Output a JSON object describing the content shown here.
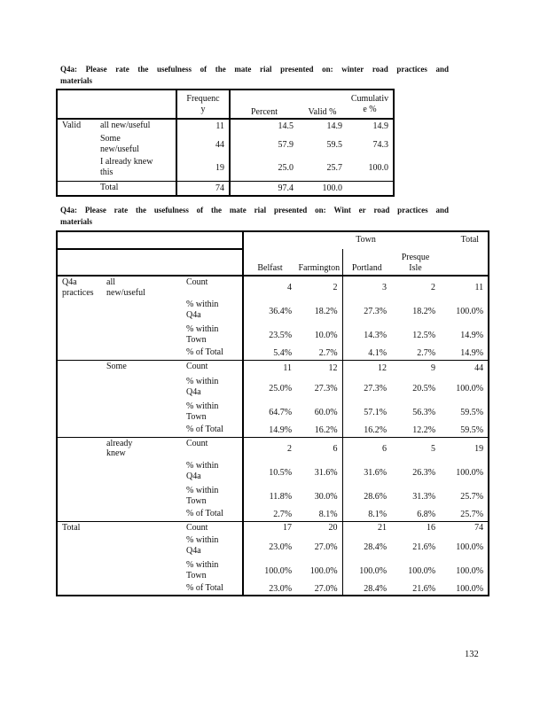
{
  "page": {
    "number": "132"
  },
  "title1": {
    "words": [
      "Q4a:",
      "Please",
      "rate",
      "the",
      "usefulness",
      "of",
      "the",
      "mate",
      "rial",
      "presented",
      "on:",
      "winter",
      "road",
      "practices",
      "and"
    ],
    "line2": "materials"
  },
  "title2": {
    "words": [
      "Q4a:",
      "Please",
      "rate",
      "the",
      "usefulness",
      "of",
      "the",
      "mate",
      "rial",
      "presented",
      "on:",
      "Wint",
      "er",
      "road",
      "practices",
      "and"
    ],
    "line2": "materials"
  },
  "table1": {
    "group_label": "Valid",
    "header": {
      "frequency": "Frequenc\ny",
      "percent": "Percent",
      "valid_pct": "Valid %",
      "cumulative_pct": "Cumulativ\ne %"
    },
    "rows": [
      {
        "label": "all new/useful",
        "frequency": "11",
        "percent": "14.5",
        "valid_pct": "14.9",
        "cumulative_pct": "14.9"
      },
      {
        "label": "Some\nnew/useful",
        "frequency": "44",
        "percent": "57.9",
        "valid_pct": "59.5",
        "cumulative_pct": "74.3"
      },
      {
        "label": "I already knew\nthis",
        "frequency": "19",
        "percent": "25.0",
        "valid_pct": "25.7",
        "cumulative_pct": "100.0"
      },
      {
        "label": "Total",
        "frequency": "74",
        "percent": "97.4",
        "valid_pct": "100.0",
        "cumulative_pct": ""
      }
    ]
  },
  "table2": {
    "header": {
      "town": "Town",
      "total": "Total",
      "towns": [
        "Belfast",
        "Farmington",
        "Portland",
        "Presque\nIsle"
      ]
    },
    "blocks": [
      {
        "group": "Q4a\npractices",
        "category": "all\nnew/useful",
        "rows": [
          {
            "measure": "Count",
            "values": [
              "4",
              "2",
              "3",
              "2",
              "11"
            ]
          },
          {
            "measure": "% within\nQ4a",
            "values": [
              "36.4%",
              "18.2%",
              "27.3%",
              "18.2%",
              "100.0%"
            ]
          },
          {
            "measure": "% within\nTown",
            "values": [
              "23.5%",
              "10.0%",
              "14.3%",
              "12.5%",
              "14.9%"
            ]
          },
          {
            "measure": "% of Total",
            "values": [
              "5.4%",
              "2.7%",
              "4.1%",
              "2.7%",
              "14.9%"
            ]
          }
        ]
      },
      {
        "group": "",
        "category": "Some",
        "rows": [
          {
            "measure": "Count",
            "values": [
              "11",
              "12",
              "12",
              "9",
              "44"
            ]
          },
          {
            "measure": "% within\nQ4a",
            "values": [
              "25.0%",
              "27.3%",
              "27.3%",
              "20.5%",
              "100.0%"
            ]
          },
          {
            "measure": "% within\nTown",
            "values": [
              "64.7%",
              "60.0%",
              "57.1%",
              "56.3%",
              "59.5%"
            ]
          },
          {
            "measure": "% of Total",
            "values": [
              "14.9%",
              "16.2%",
              "16.2%",
              "12.2%",
              "59.5%"
            ]
          }
        ]
      },
      {
        "group": "",
        "category": "already\nknew",
        "rows": [
          {
            "measure": "Count",
            "values": [
              "2",
              "6",
              "6",
              "5",
              "19"
            ]
          },
          {
            "measure": "% within\nQ4a",
            "values": [
              "10.5%",
              "31.6%",
              "31.6%",
              "26.3%",
              "100.0%"
            ]
          },
          {
            "measure": "% within\nTown",
            "values": [
              "11.8%",
              "30.0%",
              "28.6%",
              "31.3%",
              "25.7%"
            ]
          },
          {
            "measure": "% of Total",
            "values": [
              "2.7%",
              "8.1%",
              "8.1%",
              "6.8%",
              "25.7%"
            ]
          }
        ]
      },
      {
        "group": "Total",
        "category": "",
        "rows": [
          {
            "measure": "Count",
            "values": [
              "17",
              "20",
              "21",
              "16",
              "74"
            ]
          },
          {
            "measure": "% within\nQ4a",
            "values": [
              "23.0%",
              "27.0%",
              "28.4%",
              "21.6%",
              "100.0%"
            ]
          },
          {
            "measure": "% within\nTown",
            "values": [
              "100.0%",
              "100.0%",
              "100.0%",
              "100.0%",
              "100.0%"
            ]
          },
          {
            "measure": "% of Total",
            "values": [
              "23.0%",
              "27.0%",
              "28.4%",
              "21.6%",
              "100.0%"
            ]
          }
        ]
      }
    ]
  }
}
